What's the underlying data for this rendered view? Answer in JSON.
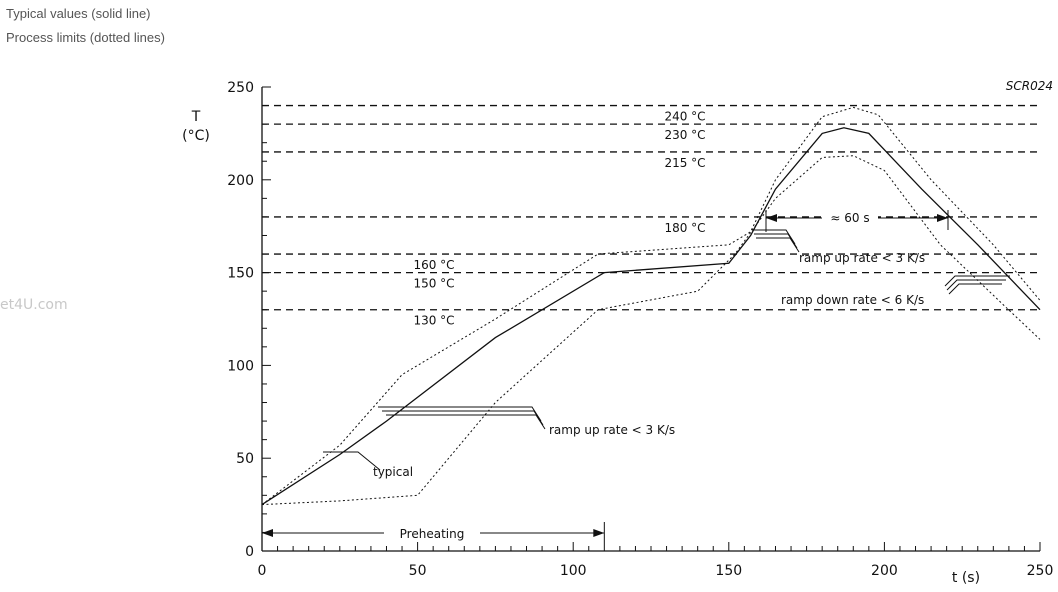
{
  "legend": {
    "typical": "Typical values (solid line)",
    "limits": "Process limits (dotted lines)"
  },
  "watermark": "et4U.com",
  "chart_data": {
    "type": "line",
    "code": "SCR024",
    "ylabel_symbol": "T",
    "ylabel_unit": "(°C)",
    "xlabel": "t (s)",
    "xlim": [
      0,
      250
    ],
    "ylim": [
      0,
      250
    ],
    "x_ticks": [
      0,
      50,
      100,
      150,
      200,
      250
    ],
    "y_ticks": [
      0,
      50,
      100,
      150,
      200,
      250
    ],
    "reference_lines": [
      {
        "label": "240 °C",
        "value": 240
      },
      {
        "label": "230 °C",
        "value": 230
      },
      {
        "label": "215 °C",
        "value": 215
      },
      {
        "label": "180 °C",
        "value": 180
      },
      {
        "label": "160 °C",
        "value": 160
      },
      {
        "label": "150 °C",
        "value": 150
      },
      {
        "label": "130 °C",
        "value": 130
      }
    ],
    "series": [
      {
        "style": "solid",
        "x": [
          0,
          25,
          40,
          75,
          110,
          150,
          157,
          165,
          180,
          187,
          195,
          212,
          230,
          250
        ],
        "y": [
          25,
          52,
          70,
          115,
          150,
          155,
          170,
          195,
          225,
          228,
          225,
          195,
          165,
          130
        ]
      },
      {
        "style": "dotted",
        "x": [
          0,
          25,
          45,
          75,
          108,
          150,
          157,
          165,
          180,
          190,
          198,
          215,
          235,
          250
        ],
        "y": [
          25,
          57,
          95,
          125,
          160,
          165,
          172,
          200,
          234,
          239,
          235,
          200,
          165,
          135
        ]
      },
      {
        "style": "dotted",
        "x": [
          0,
          25,
          50,
          75,
          108,
          140,
          152,
          165,
          180,
          190,
          200,
          218,
          238,
          250
        ],
        "y": [
          25,
          27,
          30,
          80,
          130,
          140,
          160,
          190,
          212,
          213,
          205,
          165,
          133,
          114
        ]
      }
    ],
    "annotations": {
      "typical": "typical",
      "preheating": "Preheating",
      "ramp_up_1": "ramp up rate < 3 K/s",
      "ramp_up_2": "ramp up rate < 3 K/s",
      "ramp_down": "ramp down rate < 6 K/s",
      "duration": "≈ 60 s"
    }
  }
}
